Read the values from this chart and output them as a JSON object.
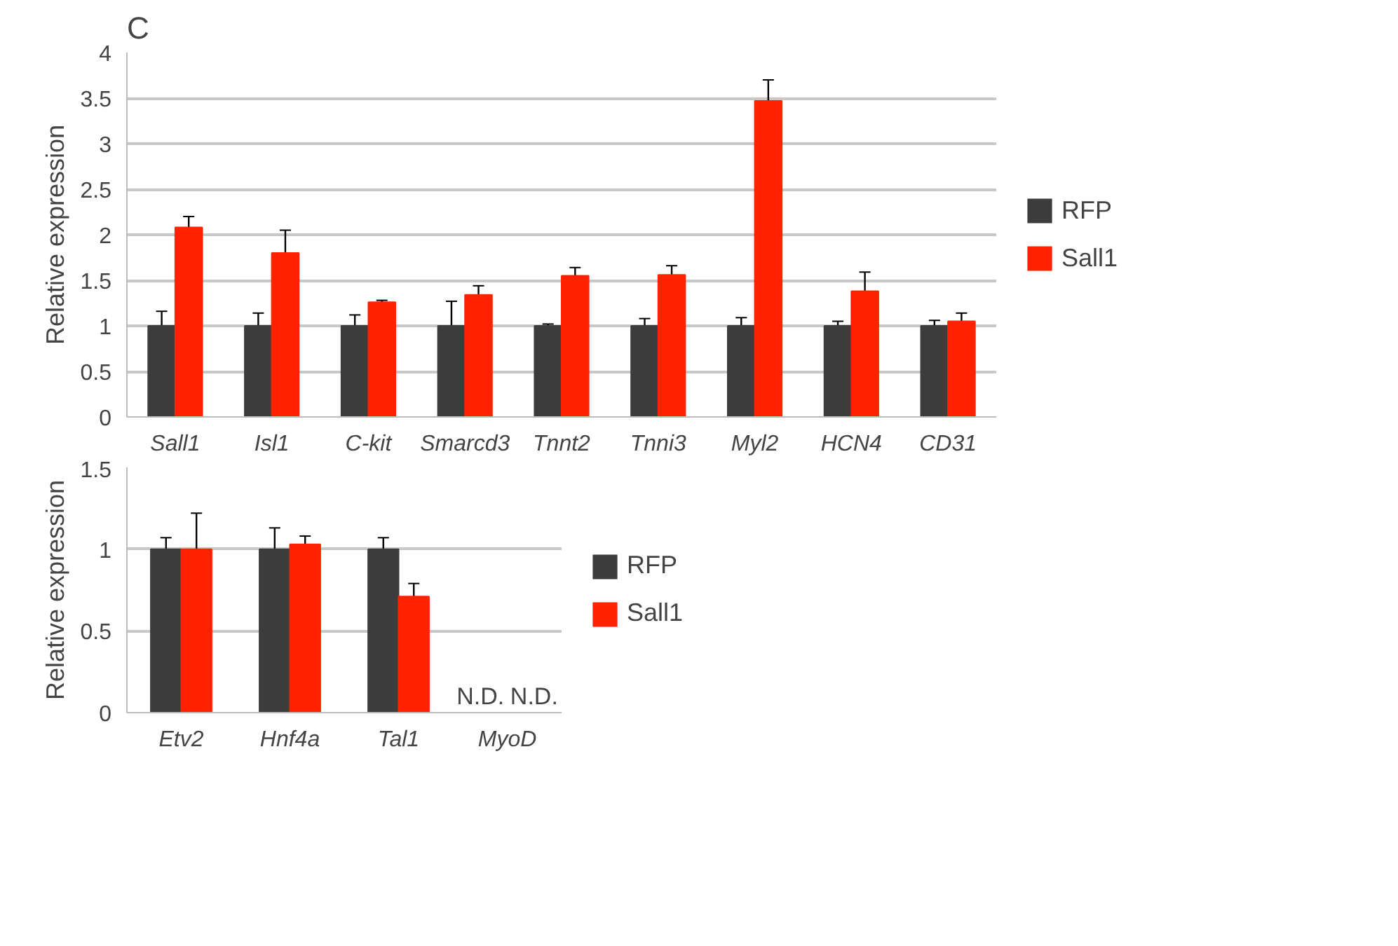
{
  "chart_data": [
    {
      "type": "bar",
      "title": "C",
      "ylabel": "Relative expression",
      "categories": [
        "Sall1",
        "Isl1",
        "C-kit",
        "Smarcd3",
        "Tnnt2",
        "Tnni3",
        "Myl2",
        "HCN4",
        "CD31"
      ],
      "series": [
        {
          "name": "RFP",
          "color": "#3c3c3c",
          "values": [
            1,
            1,
            1,
            1,
            1,
            1,
            1,
            1,
            1
          ],
          "errors": [
            0.16,
            0.14,
            0.12,
            0.27,
            0.02,
            0.08,
            0.09,
            0.05,
            0.06
          ]
        },
        {
          "name": "Sall1",
          "color": "#ff2200",
          "values": [
            2.08,
            1.8,
            1.26,
            1.34,
            1.55,
            1.56,
            3.47,
            1.38,
            1.05
          ],
          "errors": [
            0.12,
            0.25,
            0.02,
            0.1,
            0.09,
            0.1,
            0.23,
            0.21,
            0.09
          ]
        }
      ],
      "ylim": [
        0,
        4
      ],
      "yticks": [
        0,
        0.5,
        1,
        1.5,
        2,
        2.5,
        3,
        3.5,
        4
      ],
      "grid": "y",
      "legend": "right"
    },
    {
      "type": "bar",
      "ylabel": "Relative expression",
      "categories": [
        "Etv2",
        "Hnf4a",
        "Tal1",
        "MyoD"
      ],
      "series": [
        {
          "name": "RFP",
          "color": "#3c3c3c",
          "values": [
            1,
            1,
            1,
            null
          ],
          "errors": [
            0.07,
            0.13,
            0.07,
            null
          ]
        },
        {
          "name": "Sall1",
          "color": "#ff2200",
          "values": [
            1.0,
            1.03,
            0.71,
            null
          ],
          "errors": [
            0.22,
            0.05,
            0.08,
            null
          ]
        }
      ],
      "annotations": [
        "N.D.",
        "N.D."
      ],
      "ylim": [
        0,
        1.5
      ],
      "yticks": [
        0,
        0.5,
        1,
        1.5
      ],
      "grid": "y",
      "legend": "right"
    }
  ]
}
